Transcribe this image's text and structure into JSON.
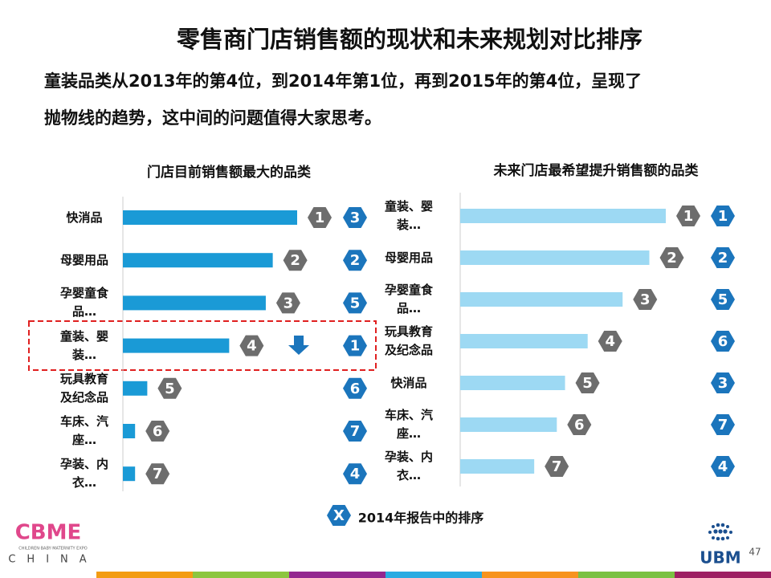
{
  "header": {
    "title": "零售商门店销售额的现状和未来规划对比排序",
    "subtitle_lines": [
      "童装品类从2013年的第4位，到2014年第1位，再到2015年的第4位，呈现了",
      "抛物线的趋势，这中间的问题值得大家思考。"
    ]
  },
  "chart_data": [
    {
      "type": "bar",
      "orientation": "horizontal",
      "title": "门店目前销售额最大的品类",
      "categories": [
        "快消品",
        "母婴用品",
        "孕婴童食品…",
        "童装、婴装…",
        "玩具教育及纪念品",
        "车床、汽座…",
        "孕装、内衣…"
      ],
      "values": [
        100,
        86,
        82,
        61,
        14,
        7,
        7
      ],
      "xlim": [
        0,
        100
      ],
      "color": "#1a9ad6",
      "rank_labels": [
        1,
        2,
        3,
        4,
        5,
        6,
        7
      ],
      "ranks_2014": [
        3,
        2,
        5,
        1,
        6,
        7,
        4
      ]
    },
    {
      "type": "bar",
      "orientation": "horizontal",
      "title": "未来门店最希望提升销售额的品类",
      "categories": [
        "童装、婴装…",
        "母婴用品",
        "孕婴童食品…",
        "玩具教育及纪念品",
        "快消品",
        "车床、汽座…",
        "孕装、内衣…"
      ],
      "values": [
        100,
        92,
        79,
        62,
        51,
        47,
        36
      ],
      "xlim": [
        0,
        100
      ],
      "color": "#9dd9f3",
      "rank_labels": [
        1,
        2,
        3,
        4,
        5,
        6,
        7
      ],
      "ranks_2014": [
        1,
        2,
        5,
        6,
        3,
        7,
        4
      ]
    }
  ],
  "legend": {
    "marker": "X",
    "label": "2014年报告中的排序"
  },
  "footer": {
    "logo": "CBME",
    "tagline": "CHILDREN·BABY·MATERNITY EXPO",
    "country": "CHINA",
    "ubm": "UBM",
    "page_number": 47
  }
}
